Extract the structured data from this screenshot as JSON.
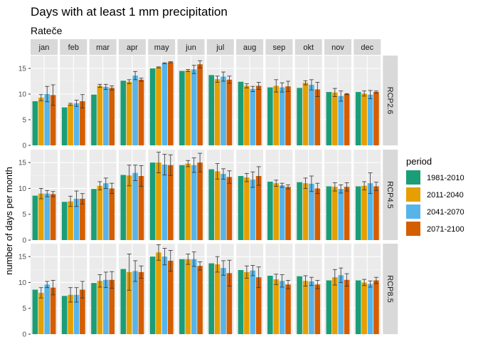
{
  "chart_data": {
    "type": "bar",
    "title": "Days with at least 1 mm precipitation",
    "subtitle": "Rateče",
    "ylabel": "number of days per month",
    "xlabel": "",
    "ylim": [
      0,
      17.5
    ],
    "yticks": [
      0,
      5,
      10,
      15
    ],
    "grid": true,
    "legend": {
      "title": "period",
      "position": "right"
    },
    "months": [
      "jan",
      "feb",
      "mar",
      "apr",
      "may",
      "jun",
      "jul",
      "aug",
      "sep",
      "okt",
      "nov",
      "dec"
    ],
    "periods": [
      {
        "name": "1981-2010",
        "color": "#1b9e77"
      },
      {
        "name": "2011-2040",
        "color": "#e69f00"
      },
      {
        "name": "2041-2070",
        "color": "#56b4e9"
      },
      {
        "name": "2071-2100",
        "color": "#d55e00"
      }
    ],
    "scenarios": [
      {
        "name": "RCP2.6",
        "values": [
          [
            8.6,
            9.3,
            10.0,
            9.8
          ],
          [
            7.4,
            8.0,
            8.2,
            8.6
          ],
          [
            9.9,
            11.6,
            11.4,
            11.2
          ],
          [
            12.6,
            12.4,
            13.6,
            12.8
          ],
          [
            15.0,
            15.2,
            16.0,
            16.2
          ],
          [
            14.5,
            14.6,
            14.8,
            15.8
          ],
          [
            13.7,
            12.9,
            13.4,
            12.8
          ],
          [
            12.4,
            11.6,
            11.0,
            11.6
          ],
          [
            11.3,
            11.6,
            11.3,
            11.5
          ],
          [
            11.2,
            12.2,
            11.8,
            10.9
          ],
          [
            10.4,
            10.3,
            9.6,
            10.0
          ],
          [
            10.4,
            10.1,
            9.9,
            10.4
          ]
        ],
        "errors": [
          [
            0,
            0.6,
            1.5,
            2.0
          ],
          [
            0,
            0.2,
            0.6,
            1.3
          ],
          [
            0,
            0.3,
            0.5,
            0.4
          ],
          [
            0,
            0.4,
            0.8,
            0.3
          ],
          [
            0,
            0.1,
            0.1,
            0.1
          ],
          [
            0,
            0.2,
            0.8,
            0.7
          ],
          [
            0,
            0.6,
            0.9,
            0.7
          ],
          [
            0,
            0.4,
            0.5,
            0.7
          ],
          [
            0,
            1.2,
            0.9,
            1.0
          ],
          [
            0,
            0.4,
            1.0,
            1.4
          ],
          [
            0,
            0.8,
            1.0,
            0.1
          ],
          [
            0,
            0.5,
            0.8,
            0.2
          ]
        ]
      },
      {
        "name": "RCP4.5",
        "values": [
          [
            8.6,
            9.0,
            9.0,
            8.9
          ],
          [
            7.4,
            7.5,
            8.0,
            8.0
          ],
          [
            9.9,
            10.5,
            11.0,
            10.0
          ],
          [
            12.6,
            12.5,
            13.0,
            12.4
          ],
          [
            15.0,
            15.0,
            14.6,
            14.5
          ],
          [
            14.5,
            14.8,
            14.5,
            15.0
          ],
          [
            13.7,
            13.3,
            12.8,
            12.2
          ],
          [
            12.4,
            12.1,
            11.7,
            12.4
          ],
          [
            11.3,
            11.0,
            10.6,
            10.3
          ],
          [
            11.2,
            11.0,
            10.9,
            10.0
          ],
          [
            10.4,
            10.3,
            9.9,
            10.3
          ],
          [
            10.4,
            10.5,
            11.0,
            10.4
          ]
        ],
        "errors": [
          [
            0,
            1.0,
            0.6,
            0.5
          ],
          [
            0,
            1.0,
            1.5,
            1.0
          ],
          [
            0,
            0.8,
            1.0,
            1.0
          ],
          [
            0,
            2.0,
            1.5,
            2.0
          ],
          [
            0,
            2.0,
            2.0,
            2.0
          ],
          [
            0,
            0.6,
            1.4,
            1.8
          ],
          [
            0,
            1.5,
            1.0,
            1.2
          ],
          [
            0,
            0.8,
            1.5,
            1.8
          ],
          [
            0,
            0.6,
            0.4,
            0.4
          ],
          [
            0,
            1.0,
            1.5,
            1.0
          ],
          [
            0,
            0.8,
            0.8,
            0.8
          ],
          [
            0,
            0.8,
            2.0,
            0.8
          ]
        ]
      },
      {
        "name": "RCP8.5",
        "values": [
          [
            8.6,
            8.0,
            9.6,
            9.0
          ],
          [
            7.4,
            7.6,
            7.6,
            8.6
          ],
          [
            9.9,
            10.3,
            10.5,
            10.5
          ],
          [
            12.6,
            12.0,
            12.2,
            12.0
          ],
          [
            15.0,
            15.8,
            15.0,
            14.2
          ],
          [
            14.5,
            14.5,
            14.5,
            13.2
          ],
          [
            13.7,
            13.5,
            12.8,
            11.8
          ],
          [
            12.4,
            12.0,
            12.3,
            11.0
          ],
          [
            11.3,
            10.6,
            10.3,
            9.6
          ],
          [
            11.2,
            10.3,
            10.2,
            9.6
          ],
          [
            10.4,
            11.0,
            11.4,
            10.5
          ],
          [
            10.4,
            10.0,
            9.7,
            10.4
          ]
        ],
        "errors": [
          [
            0,
            1.0,
            0.6,
            1.4
          ],
          [
            0,
            1.4,
            1.4,
            1.6
          ],
          [
            0,
            1.2,
            1.5,
            1.6
          ],
          [
            0,
            3.5,
            2.0,
            1.2
          ],
          [
            0,
            1.5,
            1.6,
            2.0
          ],
          [
            0,
            1.0,
            1.4,
            0.8
          ],
          [
            0,
            1.5,
            1.4,
            2.5
          ],
          [
            0,
            1.2,
            1.0,
            2.0
          ],
          [
            0,
            1.0,
            1.2,
            0.8
          ],
          [
            0,
            1.0,
            0.8,
            0.8
          ],
          [
            0,
            1.5,
            1.4,
            1.2
          ],
          [
            0,
            0.6,
            0.6,
            0.6
          ]
        ]
      }
    ]
  }
}
